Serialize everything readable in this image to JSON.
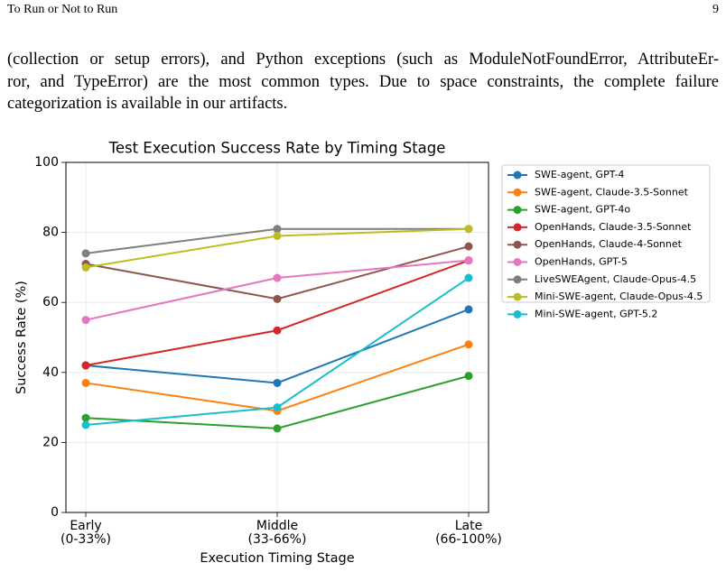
{
  "header": {
    "title": "To Run or Not to Run",
    "page": "9"
  },
  "body": {
    "lines": [
      "(collection or setup errors), and Python exceptions (such as ModuleNotFoundError, AttributeEr-",
      "ror, and TypeError) are the most common types. Due to space constraints, the complete failure",
      "categorization is available in our artifacts."
    ]
  },
  "chart_data": {
    "type": "line",
    "title": "Test Execution Success Rate by Timing Stage",
    "x_label": "Execution Timing Stage",
    "y_label": "Success Rate (%)",
    "categories": [
      "Early\n(0-33%)",
      "Middle\n(33-66%)",
      "Late\n(66-100%)"
    ],
    "ylim": [
      0,
      100
    ],
    "yticks": [
      0,
      20,
      40,
      60,
      80,
      100
    ],
    "grid": true,
    "legend": "outside-right",
    "series": [
      {
        "name": "SWE-agent, GPT-4",
        "color": "#1f77b4",
        "values": [
          42,
          37,
          58
        ]
      },
      {
        "name": "SWE-agent, Claude-3.5-Sonnet",
        "color": "#ff7f0e",
        "values": [
          37,
          29,
          48
        ]
      },
      {
        "name": "SWE-agent, GPT-4o",
        "color": "#2ca02c",
        "values": [
          27,
          24,
          39
        ]
      },
      {
        "name": "OpenHands, Claude-3.5-Sonnet",
        "color": "#d62728",
        "values": [
          42,
          52,
          72
        ]
      },
      {
        "name": "OpenHands, Claude-4-Sonnet",
        "color": "#8c564b",
        "values": [
          71,
          61,
          76
        ]
      },
      {
        "name": "OpenHands, GPT-5",
        "color": "#e377c2",
        "values": [
          55,
          67,
          72
        ]
      },
      {
        "name": "LiveSWEAgent, Claude-Opus-4.5",
        "color": "#7f7f7f",
        "values": [
          74,
          81,
          81
        ]
      },
      {
        "name": "Mini-SWE-agent, Claude-Opus-4.5",
        "color": "#bcbd22",
        "values": [
          70,
          79,
          81
        ]
      },
      {
        "name": "Mini-SWE-agent, GPT-5.2",
        "color": "#17becf",
        "values": [
          25,
          30,
          67
        ]
      }
    ]
  }
}
